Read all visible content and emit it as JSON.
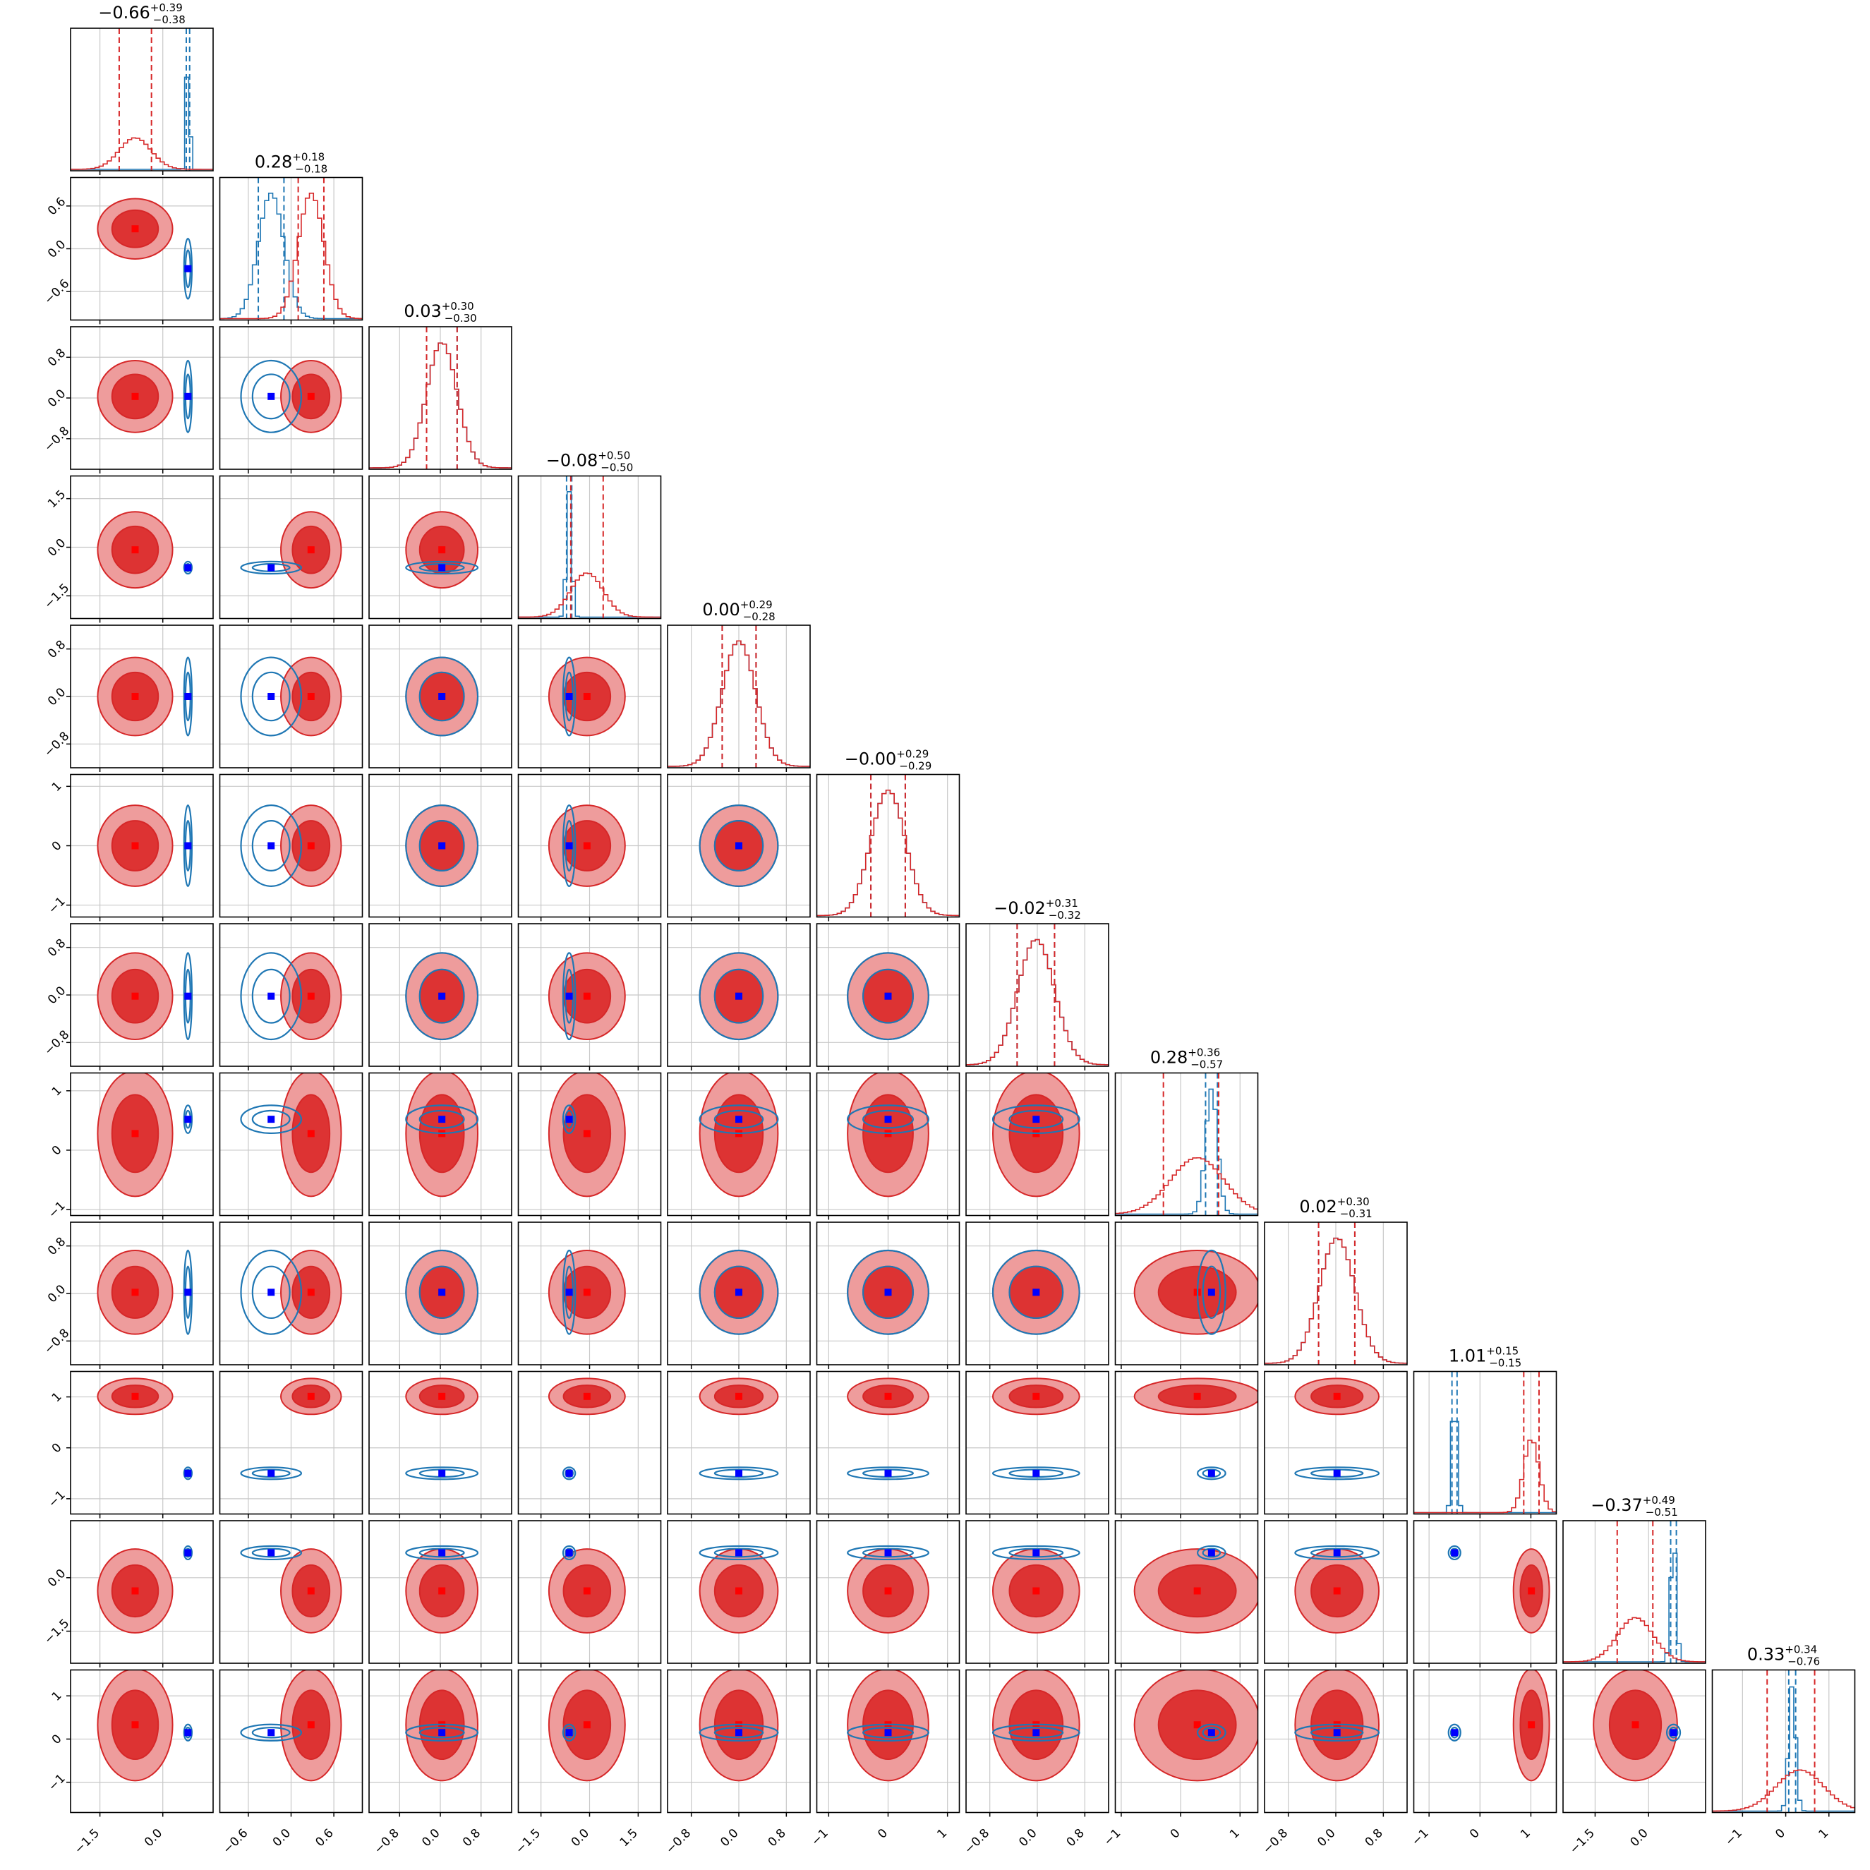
{
  "chart_data": {
    "type": "corner",
    "n_params": 12,
    "series": [
      {
        "name": "",
        "color": "#d62728",
        "role": "filled contours + histogram"
      },
      {
        "name": "",
        "color": "#1f77b4",
        "role": "line contours + histogram"
      }
    ],
    "marker_colors": {
      "blue": "#0000ff",
      "red": "#ff0000"
    },
    "grid": true,
    "parameters": [
      {
        "index": 0,
        "title_value": "−0.66",
        "title_plus": "+0.39",
        "title_minus": "−0.38",
        "range": [
          -2.2,
          1.2
        ],
        "ticks": [
          -1.5,
          0.0
        ],
        "tick_labels": [
          "−1.5",
          "0.0"
        ],
        "red": {
          "mean": -0.66,
          "sd": 0.38,
          "q16": -1.04,
          "q84": -0.27
        },
        "blue": {
          "mean": 0.6,
          "sd": 0.04,
          "q16": 0.56,
          "q84": 0.64
        }
      },
      {
        "index": 1,
        "title_value": "0.28",
        "title_plus": "+0.18",
        "title_minus": "−0.18",
        "range": [
          -1.0,
          1.0
        ],
        "ticks": [
          -0.6,
          0.0,
          0.6
        ],
        "tick_labels": [
          "−0.6",
          "0.0",
          "0.6"
        ],
        "red": {
          "mean": 0.28,
          "sd": 0.18,
          "q16": 0.1,
          "q84": 0.46
        },
        "blue": {
          "mean": -0.28,
          "sd": 0.18,
          "q16": -0.46,
          "q84": -0.1
        }
      },
      {
        "index": 2,
        "title_value": "0.03",
        "title_plus": "+0.30",
        "title_minus": "−0.30",
        "range": [
          -1.4,
          1.4
        ],
        "ticks": [
          -0.8,
          0.0,
          0.8
        ],
        "tick_labels": [
          "−0.8",
          "0.0",
          "0.8"
        ],
        "red": {
          "mean": 0.03,
          "sd": 0.3,
          "q16": -0.27,
          "q84": 0.33
        },
        "blue": {
          "mean": 0.03,
          "sd": 0.3,
          "q16": -0.27,
          "q84": 0.33
        }
      },
      {
        "index": 3,
        "title_value": "−0.08",
        "title_plus": "+0.50",
        "title_minus": "−0.50",
        "range": [
          -2.2,
          2.2
        ],
        "ticks": [
          -1.5,
          0.0,
          1.5
        ],
        "tick_labels": [
          "−1.5",
          "0.0",
          "1.5"
        ],
        "red": {
          "mean": -0.08,
          "sd": 0.5,
          "q16": -0.58,
          "q84": 0.42
        },
        "blue": {
          "mean": -0.63,
          "sd": 0.08,
          "q16": -0.71,
          "q84": -0.55
        }
      },
      {
        "index": 4,
        "title_value": "0.00",
        "title_plus": "+0.29",
        "title_minus": "−0.28",
        "range": [
          -1.2,
          1.2
        ],
        "ticks": [
          -0.8,
          0.0,
          0.8
        ],
        "tick_labels": [
          "−0.8",
          "0.0",
          "0.8"
        ],
        "red": {
          "mean": 0.0,
          "sd": 0.28,
          "q16": -0.28,
          "q84": 0.29
        },
        "blue": {
          "mean": 0.0,
          "sd": 0.28,
          "q16": -0.28,
          "q84": 0.29
        }
      },
      {
        "index": 5,
        "title_value": "−0.00",
        "title_plus": "+0.29",
        "title_minus": "−0.29",
        "range": [
          -1.2,
          1.2
        ],
        "ticks": [
          -1,
          0,
          1
        ],
        "tick_labels": [
          "−1",
          "0",
          "1"
        ],
        "red": {
          "mean": 0.0,
          "sd": 0.29,
          "q16": -0.29,
          "q84": 0.29
        },
        "blue": {
          "mean": 0.0,
          "sd": 0.29,
          "q16": -0.29,
          "q84": 0.29
        }
      },
      {
        "index": 6,
        "title_value": "−0.02",
        "title_plus": "+0.31",
        "title_minus": "−0.32",
        "range": [
          -1.2,
          1.2
        ],
        "ticks": [
          -0.8,
          0.0,
          0.8
        ],
        "tick_labels": [
          "−0.8",
          "0.0",
          "0.8"
        ],
        "red": {
          "mean": -0.02,
          "sd": 0.31,
          "q16": -0.34,
          "q84": 0.29
        },
        "blue": {
          "mean": -0.02,
          "sd": 0.31,
          "q16": -0.34,
          "q84": 0.29
        }
      },
      {
        "index": 7,
        "title_value": "0.28",
        "title_plus": "+0.36",
        "title_minus": "−0.57",
        "range": [
          -1.1,
          1.3
        ],
        "ticks": [
          -1,
          0,
          1
        ],
        "tick_labels": [
          "−1",
          "0",
          "1"
        ],
        "red": {
          "mean": 0.28,
          "sd": 0.45,
          "q16": -0.29,
          "q84": 0.64
        },
        "blue": {
          "mean": 0.52,
          "sd": 0.1,
          "q16": 0.42,
          "q84": 0.62
        }
      },
      {
        "index": 8,
        "title_value": "0.02",
        "title_plus": "+0.30",
        "title_minus": "−0.31",
        "range": [
          -1.2,
          1.2
        ],
        "ticks": [
          -0.8,
          0.0,
          0.8
        ],
        "tick_labels": [
          "−0.8",
          "0.0",
          "0.8"
        ],
        "red": {
          "mean": 0.02,
          "sd": 0.3,
          "q16": -0.29,
          "q84": 0.32
        },
        "blue": {
          "mean": 0.02,
          "sd": 0.3,
          "q16": -0.29,
          "q84": 0.32
        }
      },
      {
        "index": 9,
        "title_value": "1.01",
        "title_plus": "+0.15",
        "title_minus": "−0.15",
        "range": [
          -1.3,
          1.5
        ],
        "ticks": [
          -1,
          0,
          1
        ],
        "tick_labels": [
          "−1",
          "0",
          "1"
        ],
        "red": {
          "mean": 1.01,
          "sd": 0.15,
          "q16": 0.86,
          "q84": 1.16
        },
        "blue": {
          "mean": -0.5,
          "sd": 0.05,
          "q16": -0.55,
          "q84": -0.45
        }
      },
      {
        "index": 10,
        "title_value": "−0.37",
        "title_plus": "+0.49",
        "title_minus": "−0.51",
        "range": [
          -2.4,
          1.6
        ],
        "ticks": [
          -1.5,
          0.0
        ],
        "tick_labels": [
          "−1.5",
          "0.0"
        ],
        "red": {
          "mean": -0.37,
          "sd": 0.5,
          "q16": -0.88,
          "q84": 0.12
        },
        "blue": {
          "mean": 0.7,
          "sd": 0.08,
          "q16": 0.62,
          "q84": 0.78
        }
      },
      {
        "index": 11,
        "title_value": "0.33",
        "title_plus": "+0.34",
        "title_minus": "−0.76",
        "range": [
          -1.7,
          1.6
        ],
        "ticks": [
          -1,
          0,
          1
        ],
        "tick_labels": [
          "−1",
          "0",
          "1"
        ],
        "red": {
          "mean": 0.33,
          "sd": 0.55,
          "q16": -0.43,
          "q84": 0.67
        },
        "blue": {
          "mean": 0.15,
          "sd": 0.08,
          "q16": 0.07,
          "q84": 0.23
        }
      }
    ]
  }
}
